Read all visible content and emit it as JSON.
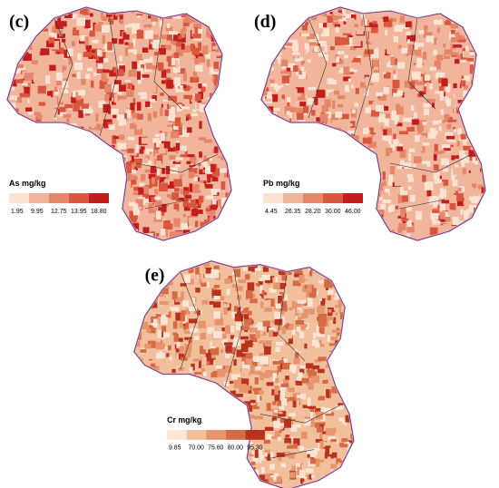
{
  "panels": [
    {
      "label": "(c)",
      "legend": {
        "title": "As mg/kg",
        "labels": [
          "1.95",
          "9.95",
          "12.75",
          "13.95",
          "18.80"
        ],
        "colors": [
          "#fbe3d4",
          "#f0b59a",
          "#e5866a",
          "#d9563f",
          "#c41d1d"
        ]
      }
    },
    {
      "label": "(d)",
      "legend": {
        "title": "Pb mg/kg",
        "labels": [
          "4.45",
          "26.35",
          "28.20",
          "30.00",
          "46.00"
        ],
        "colors": [
          "#fbe3d4",
          "#f0b59a",
          "#e5866a",
          "#d9563f",
          "#c41d1d"
        ]
      }
    },
    {
      "label": "(e)",
      "legend": {
        "title": "Cr mg/kg",
        "labels": [
          "9.85",
          "70.00",
          "75.60",
          "80.00",
          "95.30"
        ],
        "colors": [
          "#fbe6d6",
          "#f2bf9c",
          "#e6946d",
          "#d66a45",
          "#b8321e"
        ]
      }
    }
  ]
}
